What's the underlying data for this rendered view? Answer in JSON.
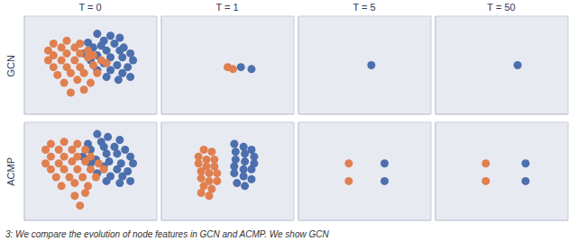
{
  "chart_data": [
    {
      "type": "scatter",
      "title": "T = 0",
      "y_label": "GCN",
      "annotations": [
        "3: We compare the evolution of node features in GCN and ACMP. We show GCN"
      ],
      "xlim": [
        0,
        1
      ],
      "ylim": [
        0,
        1
      ],
      "xticks": [
        0.2,
        0.4,
        0.6,
        0.8
      ],
      "yticks": [
        0.2,
        0.4,
        0.6,
        0.8
      ],
      "grid": true,
      "tick_labels": false,
      "series": [
        {
          "color": "#4c6fad",
          "x": [
            0.55,
            0.65,
            0.72,
            0.6,
            0.48,
            0.58,
            0.68,
            0.75,
            0.52,
            0.62,
            0.72,
            0.8,
            0.45,
            0.55,
            0.65,
            0.74,
            0.82,
            0.5,
            0.6,
            0.7,
            0.78,
            0.55,
            0.65,
            0.74,
            0.62,
            0.71,
            0.8
          ],
          "values": [
            0.82,
            0.8,
            0.78,
            0.75,
            0.73,
            0.7,
            0.72,
            0.68,
            0.68,
            0.65,
            0.65,
            0.62,
            0.62,
            0.6,
            0.58,
            0.58,
            0.55,
            0.55,
            0.52,
            0.5,
            0.48,
            0.45,
            0.45,
            0.42,
            0.38,
            0.35,
            0.38
          ]
        },
        {
          "color": "#e07f4f",
          "x": [
            0.22,
            0.32,
            0.42,
            0.18,
            0.28,
            0.38,
            0.48,
            0.22,
            0.32,
            0.42,
            0.52,
            0.18,
            0.28,
            0.38,
            0.48,
            0.58,
            0.22,
            0.32,
            0.42,
            0.52,
            0.62,
            0.25,
            0.35,
            0.45,
            0.55,
            0.3,
            0.4,
            0.5,
            0.35,
            0.45
          ],
          "values": [
            0.72,
            0.75,
            0.72,
            0.65,
            0.68,
            0.68,
            0.65,
            0.6,
            0.62,
            0.62,
            0.6,
            0.55,
            0.55,
            0.55,
            0.58,
            0.55,
            0.48,
            0.48,
            0.48,
            0.5,
            0.52,
            0.4,
            0.42,
            0.42,
            0.42,
            0.32,
            0.35,
            0.32,
            0.22,
            0.25
          ]
        }
      ]
    },
    {
      "type": "scatter",
      "title": "T = 1",
      "xlim": [
        0,
        1
      ],
      "ylim": [
        0,
        1
      ],
      "xticks": [
        0.2,
        0.4,
        0.6,
        0.8
      ],
      "yticks": [
        0.2,
        0.4,
        0.6,
        0.8
      ],
      "grid": true,
      "tick_labels": false,
      "series": [
        {
          "color": "#4c6fad",
          "x": [
            0.6,
            0.68
          ],
          "values": [
            0.48,
            0.46
          ]
        },
        {
          "color": "#e07f4f",
          "x": [
            0.5,
            0.54
          ],
          "values": [
            0.48,
            0.46
          ]
        }
      ]
    },
    {
      "type": "scatter",
      "title": "T = 5",
      "xlim": [
        0,
        1
      ],
      "ylim": [
        0,
        1
      ],
      "xticks": [
        0.2,
        0.4,
        0.6,
        0.8
      ],
      "yticks": [
        0.2,
        0.4,
        0.6,
        0.8
      ],
      "grid": true,
      "tick_labels": false,
      "series": [
        {
          "color": "#4c6fad",
          "x": [
            0.55
          ],
          "values": [
            0.5
          ]
        },
        {
          "color": "#e07f4f",
          "x": [],
          "values": []
        }
      ]
    },
    {
      "type": "scatter",
      "title": "T = 50",
      "xlim": [
        0,
        1
      ],
      "ylim": [
        0,
        1
      ],
      "xticks": [
        0.2,
        0.4,
        0.6,
        0.8
      ],
      "yticks": [
        0.2,
        0.4,
        0.6,
        0.8
      ],
      "grid": true,
      "tick_labels": false,
      "series": [
        {
          "color": "#4c6fad",
          "x": [
            0.62
          ],
          "values": [
            0.5
          ]
        },
        {
          "color": "#e07f4f",
          "x": [],
          "values": []
        }
      ]
    },
    {
      "type": "scatter",
      "y_label": "ACMP",
      "xlim": [
        0,
        1
      ],
      "ylim": [
        0,
        1
      ],
      "xticks": [
        0.2,
        0.4,
        0.6,
        0.8
      ],
      "yticks": [
        0.2,
        0.4,
        0.6,
        0.8
      ],
      "grid": true,
      "tick_labels": false,
      "series": [
        {
          "color": "#4c6fad",
          "x": [
            0.55,
            0.63,
            0.72,
            0.58,
            0.48,
            0.6,
            0.68,
            0.76,
            0.5,
            0.62,
            0.7,
            0.8,
            0.44,
            0.54,
            0.64,
            0.73,
            0.82,
            0.5,
            0.6,
            0.7,
            0.78,
            0.55,
            0.65,
            0.74,
            0.62,
            0.72,
            0.8
          ],
          "values": [
            0.88,
            0.85,
            0.82,
            0.8,
            0.78,
            0.75,
            0.75,
            0.72,
            0.72,
            0.68,
            0.68,
            0.65,
            0.65,
            0.62,
            0.6,
            0.58,
            0.58,
            0.58,
            0.55,
            0.52,
            0.5,
            0.48,
            0.45,
            0.45,
            0.4,
            0.38,
            0.4
          ]
        },
        {
          "color": "#e07f4f",
          "x": [
            0.2,
            0.3,
            0.4,
            0.16,
            0.26,
            0.36,
            0.46,
            0.2,
            0.3,
            0.4,
            0.5,
            0.16,
            0.26,
            0.36,
            0.46,
            0.56,
            0.2,
            0.3,
            0.4,
            0.5,
            0.6,
            0.24,
            0.34,
            0.44,
            0.54,
            0.28,
            0.38,
            0.48,
            0.38,
            0.46,
            0.42
          ],
          "values": [
            0.78,
            0.8,
            0.78,
            0.72,
            0.72,
            0.72,
            0.72,
            0.65,
            0.65,
            0.65,
            0.65,
            0.58,
            0.58,
            0.6,
            0.6,
            0.58,
            0.52,
            0.52,
            0.52,
            0.52,
            0.52,
            0.44,
            0.44,
            0.44,
            0.44,
            0.35,
            0.38,
            0.35,
            0.25,
            0.28,
            0.15
          ]
        }
      ]
    },
    {
      "type": "scatter",
      "xlim": [
        0,
        1
      ],
      "ylim": [
        0,
        1
      ],
      "xticks": [
        0.2,
        0.4,
        0.6,
        0.8
      ],
      "yticks": [
        0.2,
        0.4,
        0.6,
        0.8
      ],
      "grid": true,
      "tick_labels": false,
      "series": [
        {
          "color": "#4c6fad",
          "x": [
            0.55,
            0.62,
            0.68,
            0.56,
            0.63,
            0.7,
            0.56,
            0.63,
            0.7,
            0.55,
            0.62,
            0.68,
            0.55,
            0.62,
            0.68,
            0.57,
            0.63
          ],
          "values": [
            0.78,
            0.75,
            0.72,
            0.7,
            0.68,
            0.65,
            0.62,
            0.6,
            0.58,
            0.55,
            0.52,
            0.52,
            0.48,
            0.45,
            0.42,
            0.38,
            0.35
          ]
        },
        {
          "color": "#e07f4f",
          "x": [
            0.32,
            0.38,
            0.28,
            0.34,
            0.4,
            0.28,
            0.34,
            0.4,
            0.3,
            0.36,
            0.42,
            0.3,
            0.36,
            0.42,
            0.32,
            0.38,
            0.3,
            0.36
          ],
          "values": [
            0.72,
            0.7,
            0.65,
            0.62,
            0.62,
            0.58,
            0.55,
            0.55,
            0.5,
            0.48,
            0.48,
            0.43,
            0.4,
            0.4,
            0.35,
            0.32,
            0.28,
            0.25
          ]
        }
      ]
    },
    {
      "type": "scatter",
      "xlim": [
        0,
        1
      ],
      "ylim": [
        0,
        1
      ],
      "xticks": [
        0.2,
        0.4,
        0.6,
        0.8
      ],
      "yticks": [
        0.2,
        0.4,
        0.6,
        0.8
      ],
      "grid": true,
      "tick_labels": false,
      "series": [
        {
          "color": "#4c6fad",
          "x": [
            0.65,
            0.65
          ],
          "values": [
            0.58,
            0.4
          ]
        },
        {
          "color": "#e07f4f",
          "x": [
            0.38,
            0.38
          ],
          "values": [
            0.58,
            0.4
          ]
        }
      ]
    },
    {
      "type": "scatter",
      "xlim": [
        0,
        1
      ],
      "ylim": [
        0,
        1
      ],
      "xticks": [
        0.2,
        0.4,
        0.6,
        0.8
      ],
      "yticks": [
        0.2,
        0.4,
        0.6,
        0.8
      ],
      "grid": true,
      "tick_labels": false,
      "series": [
        {
          "color": "#4c6fad",
          "x": [
            0.68,
            0.68
          ],
          "values": [
            0.58,
            0.4
          ]
        },
        {
          "color": "#e07f4f",
          "x": [
            0.38,
            0.38
          ],
          "values": [
            0.58,
            0.4
          ]
        }
      ]
    }
  ]
}
